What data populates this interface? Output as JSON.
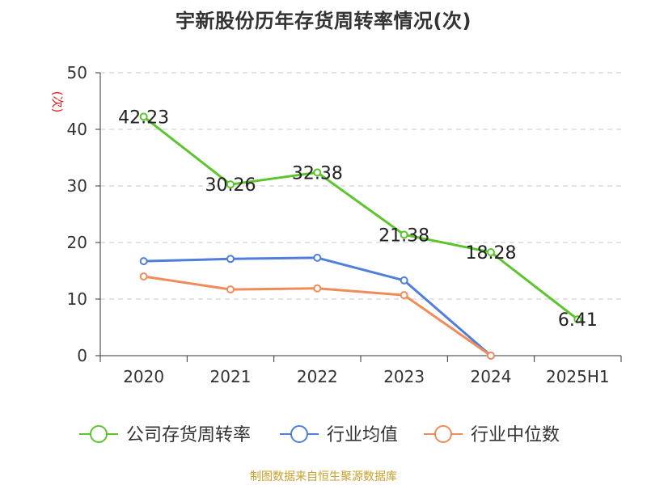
{
  "title": "宇新股份历年存货周转率情况(次)",
  "source": "制图数据来自恒生聚源数据库",
  "chart_data": {
    "type": "line",
    "title": "宇新股份历年存货周转率情况(次)",
    "ylabel": "(次)",
    "xlabel": "",
    "categories": [
      "2020",
      "2021",
      "2022",
      "2023",
      "2024",
      "2025H1"
    ],
    "ylim": [
      0,
      50
    ],
    "yticks": [
      "0",
      "10",
      "20",
      "30",
      "40",
      "50"
    ],
    "grid": true,
    "legend_position": "bottom",
    "series": [
      {
        "name": "公司存货周转率",
        "color": "#5cc42d",
        "values": [
          42.23,
          30.26,
          32.38,
          21.38,
          18.28,
          6.41
        ],
        "labels": [
          "42.23",
          "30.26",
          "32.38",
          "21.38",
          "18.28",
          "6.41"
        ]
      },
      {
        "name": "行业均值",
        "color": "#4f7fd8",
        "values": [
          16.7,
          17.1,
          17.3,
          13.3,
          0.0,
          null
        ]
      },
      {
        "name": "行业中位数",
        "color": "#f08c5a",
        "values": [
          14.0,
          11.7,
          11.9,
          10.7,
          0.0,
          null
        ]
      }
    ]
  }
}
